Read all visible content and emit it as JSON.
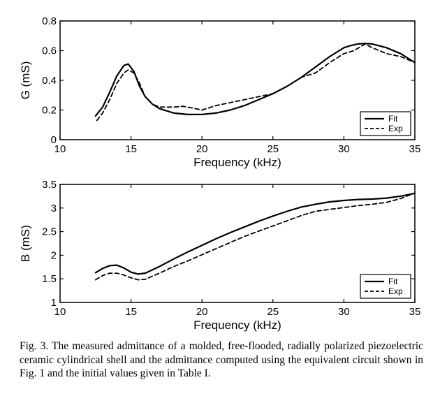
{
  "chart_data": [
    {
      "type": "line",
      "id": "G",
      "ylabel": "G (mS)",
      "xlabel": "Frequency (kHz)",
      "xlim": [
        10,
        35
      ],
      "ylim": [
        0,
        0.8
      ],
      "xticks": [
        "10",
        "15",
        "20",
        "25",
        "30",
        "35"
      ],
      "yticks": [
        "0",
        "0.2",
        "0.4",
        "0.6",
        "0.8"
      ],
      "legend_position": "bottom-right",
      "series": [
        {
          "name": "Fit",
          "style": "solid",
          "points": [
            [
              12.5,
              0.16
            ],
            [
              13.0,
              0.22
            ],
            [
              13.5,
              0.32
            ],
            [
              14.0,
              0.43
            ],
            [
              14.5,
              0.5
            ],
            [
              14.8,
              0.51
            ],
            [
              15.2,
              0.46
            ],
            [
              15.6,
              0.36
            ],
            [
              16.0,
              0.29
            ],
            [
              16.5,
              0.24
            ],
            [
              17.0,
              0.21
            ],
            [
              18.0,
              0.18
            ],
            [
              19.0,
              0.17
            ],
            [
              20.0,
              0.17
            ],
            [
              21.0,
              0.18
            ],
            [
              22.0,
              0.2
            ],
            [
              23.0,
              0.23
            ],
            [
              24.0,
              0.27
            ],
            [
              25.0,
              0.31
            ],
            [
              26.0,
              0.36
            ],
            [
              27.0,
              0.42
            ],
            [
              28.0,
              0.49
            ],
            [
              29.0,
              0.56
            ],
            [
              30.0,
              0.62
            ],
            [
              30.5,
              0.635
            ],
            [
              31.0,
              0.645
            ],
            [
              31.5,
              0.648
            ],
            [
              32.0,
              0.645
            ],
            [
              33.0,
              0.62
            ],
            [
              34.0,
              0.58
            ],
            [
              35.0,
              0.52
            ]
          ]
        },
        {
          "name": "Exp",
          "style": "dashed",
          "points": [
            [
              12.6,
              0.13
            ],
            [
              13.0,
              0.18
            ],
            [
              13.5,
              0.27
            ],
            [
              14.0,
              0.38
            ],
            [
              14.5,
              0.45
            ],
            [
              14.8,
              0.47
            ],
            [
              15.2,
              0.45
            ],
            [
              15.6,
              0.38
            ],
            [
              16.0,
              0.29
            ],
            [
              16.5,
              0.24
            ],
            [
              17.0,
              0.22
            ],
            [
              18.0,
              0.22
            ],
            [
              18.7,
              0.225
            ],
            [
              19.5,
              0.21
            ],
            [
              20.0,
              0.2
            ],
            [
              21.0,
              0.23
            ],
            [
              22.0,
              0.25
            ],
            [
              23.0,
              0.27
            ],
            [
              24.0,
              0.29
            ],
            [
              25.0,
              0.31
            ],
            [
              26.0,
              0.36
            ],
            [
              27.0,
              0.42
            ],
            [
              28.0,
              0.45
            ],
            [
              29.0,
              0.52
            ],
            [
              30.0,
              0.58
            ],
            [
              30.7,
              0.6
            ],
            [
              31.5,
              0.645
            ],
            [
              32.0,
              0.62
            ],
            [
              33.0,
              0.58
            ],
            [
              34.0,
              0.56
            ],
            [
              35.0,
              0.52
            ]
          ]
        }
      ]
    },
    {
      "type": "line",
      "id": "B",
      "ylabel": "B (mS)",
      "xlabel": "Frequency (kHz)",
      "xlim": [
        10,
        35
      ],
      "ylim": [
        1,
        3.5
      ],
      "xticks": [
        "10",
        "15",
        "20",
        "25",
        "30",
        "35"
      ],
      "yticks": [
        "1",
        "1.5",
        "2",
        "2.5",
        "3",
        "3.5"
      ],
      "legend_position": "bottom-right",
      "series": [
        {
          "name": "Fit",
          "style": "solid",
          "points": [
            [
              12.5,
              1.63
            ],
            [
              13.0,
              1.72
            ],
            [
              13.5,
              1.78
            ],
            [
              14.0,
              1.79
            ],
            [
              14.5,
              1.73
            ],
            [
              15.0,
              1.64
            ],
            [
              15.5,
              1.6
            ],
            [
              16.0,
              1.62
            ],
            [
              17.0,
              1.76
            ],
            [
              18.0,
              1.92
            ],
            [
              19.0,
              2.07
            ],
            [
              20.0,
              2.21
            ],
            [
              21.0,
              2.35
            ],
            [
              22.0,
              2.48
            ],
            [
              23.0,
              2.6
            ],
            [
              24.0,
              2.72
            ],
            [
              25.0,
              2.83
            ],
            [
              26.0,
              2.93
            ],
            [
              27.0,
              3.02
            ],
            [
              28.0,
              3.08
            ],
            [
              29.0,
              3.13
            ],
            [
              30.0,
              3.16
            ],
            [
              31.0,
              3.18
            ],
            [
              32.0,
              3.19
            ],
            [
              33.0,
              3.21
            ],
            [
              34.0,
              3.25
            ],
            [
              35.0,
              3.31
            ]
          ]
        },
        {
          "name": "Exp",
          "style": "dashed",
          "points": [
            [
              12.5,
              1.48
            ],
            [
              13.0,
              1.57
            ],
            [
              13.5,
              1.62
            ],
            [
              14.0,
              1.62
            ],
            [
              14.5,
              1.58
            ],
            [
              15.0,
              1.52
            ],
            [
              15.5,
              1.48
            ],
            [
              16.0,
              1.49
            ],
            [
              17.0,
              1.62
            ],
            [
              18.0,
              1.76
            ],
            [
              19.0,
              1.88
            ],
            [
              20.0,
              2.01
            ],
            [
              21.0,
              2.14
            ],
            [
              22.0,
              2.27
            ],
            [
              23.0,
              2.4
            ],
            [
              24.0,
              2.51
            ],
            [
              25.0,
              2.62
            ],
            [
              26.0,
              2.73
            ],
            [
              27.0,
              2.84
            ],
            [
              28.0,
              2.93
            ],
            [
              29.0,
              2.97
            ],
            [
              30.0,
              3.01
            ],
            [
              31.0,
              3.05
            ],
            [
              32.0,
              3.08
            ],
            [
              33.0,
              3.12
            ],
            [
              34.0,
              3.2
            ],
            [
              35.0,
              3.32
            ]
          ]
        }
      ]
    }
  ],
  "caption": "Fig. 3. The measured admittance of a molded, free-flooded, radially polarized piezoelectric ceramic cylindrical shell and the admittance computed using the equivalent circuit shown in Fig. 1 and the initial values given in Table I."
}
